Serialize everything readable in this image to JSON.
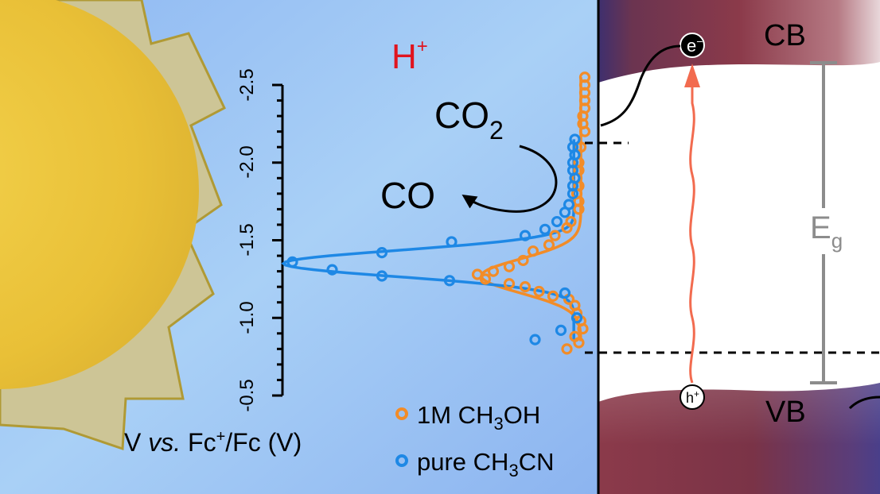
{
  "left_panel": {
    "proton_label": "H",
    "proton_charge": "+",
    "reactant": "CO",
    "reactant_sub": "2",
    "product": "CO",
    "axis": {
      "ticks": [
        "-2.5",
        "-2.0",
        "-1.5",
        "-1.0",
        "-0.5"
      ],
      "label_v": "V ",
      "label_vs": "vs.",
      "label_fc": " Fc",
      "label_sup": "+",
      "label_rest": "/Fc (V)"
    },
    "legend": [
      {
        "prefix": "1M CH",
        "sub": "3",
        "suffix": "OH",
        "color": "#F28C28"
      },
      {
        "prefix": "pure CH",
        "sub": "3",
        "suffix": "CN",
        "color": "#1E88E5"
      }
    ]
  },
  "right_panel": {
    "cb_label": "CB",
    "vb_label": "VB",
    "gap_label": "E",
    "gap_sub": "g",
    "electron": "e",
    "electron_charge": "−",
    "hole": "h",
    "hole_charge": "+"
  },
  "colors": {
    "background_blue": "#A6CCF5",
    "sun_yellow": "#EBC234",
    "sun_rays": "#CDC596",
    "orange_series": "#F28C28",
    "blue_series": "#1E88E5",
    "band_red": "#8B3A4A",
    "excitation_arrow": "#F26B4F",
    "gap_gray": "#8C8C8C",
    "proton_red": "#E0141E"
  },
  "chart_data": {
    "type": "scatter",
    "orientation": "potential on vertical axis, signal on horizontal axis",
    "ylabel": "V vs. Fc+/Fc (V)",
    "ylim": [
      -2.5,
      -0.5
    ],
    "y_ticks": [
      -2.5,
      -2.0,
      -1.5,
      -1.0,
      -0.5
    ],
    "series": [
      {
        "name": "1M CH3OH",
        "color": "#F28C28",
        "peak_potential": -1.27,
        "points": [
          {
            "v": -2.55,
            "s": -0.02
          },
          {
            "v": -2.5,
            "s": -0.02
          },
          {
            "v": -2.45,
            "s": -0.02
          },
          {
            "v": -2.4,
            "s": -0.02
          },
          {
            "v": -2.35,
            "s": -0.02
          },
          {
            "v": -2.3,
            "s": -0.01
          },
          {
            "v": -2.25,
            "s": -0.01
          },
          {
            "v": -2.2,
            "s": -0.02
          },
          {
            "v": -2.1,
            "s": 0.0
          },
          {
            "v": -2.0,
            "s": 0.01
          },
          {
            "v": -1.95,
            "s": 0.01
          },
          {
            "v": -1.9,
            "s": 0.02
          },
          {
            "v": -1.85,
            "s": 0.01
          },
          {
            "v": -1.8,
            "s": 0.02
          },
          {
            "v": -1.75,
            "s": 0.01
          },
          {
            "v": -1.7,
            "s": 0.01
          },
          {
            "v": -1.62,
            "s": 0.05
          },
          {
            "v": -1.58,
            "s": 0.07
          },
          {
            "v": -1.53,
            "s": 0.13
          },
          {
            "v": -1.47,
            "s": 0.16
          },
          {
            "v": -1.43,
            "s": 0.24
          },
          {
            "v": -1.37,
            "s": 0.29
          },
          {
            "v": -1.33,
            "s": 0.36
          },
          {
            "v": -1.3,
            "s": 0.44
          },
          {
            "v": -1.28,
            "s": 0.52
          },
          {
            "v": -1.25,
            "s": 0.48
          },
          {
            "v": -1.22,
            "s": 0.36
          },
          {
            "v": -1.2,
            "s": 0.28
          },
          {
            "v": -1.17,
            "s": 0.21
          },
          {
            "v": -1.14,
            "s": 0.14
          },
          {
            "v": -1.12,
            "s": 0.06
          },
          {
            "v": -1.08,
            "s": 0.03
          },
          {
            "v": -1.03,
            "s": 0.02
          },
          {
            "v": -0.98,
            "s": 0.0
          },
          {
            "v": -0.93,
            "s": -0.01
          },
          {
            "v": -0.88,
            "s": 0.03
          },
          {
            "v": -0.84,
            "s": 0.01
          },
          {
            "v": -0.8,
            "s": 0.07
          }
        ]
      },
      {
        "name": "pure CH3CN",
        "color": "#1E88E5",
        "peak_potential": -1.35,
        "points": [
          {
            "v": -2.15,
            "s": 0.03
          },
          {
            "v": -2.1,
            "s": 0.04
          },
          {
            "v": -2.05,
            "s": 0.03
          },
          {
            "v": -2.0,
            "s": 0.04
          },
          {
            "v": -1.95,
            "s": 0.04
          },
          {
            "v": -1.9,
            "s": 0.03
          },
          {
            "v": -1.85,
            "s": 0.04
          },
          {
            "v": -1.8,
            "s": 0.04
          },
          {
            "v": -1.73,
            "s": 0.06
          },
          {
            "v": -1.68,
            "s": 0.08
          },
          {
            "v": -1.62,
            "s": 0.12
          },
          {
            "v": -1.57,
            "s": 0.18
          },
          {
            "v": -1.53,
            "s": 0.28
          },
          {
            "v": -1.49,
            "s": 0.65
          },
          {
            "v": -1.42,
            "s": 1.0
          },
          {
            "v": -1.36,
            "s": 1.45
          },
          {
            "v": -1.31,
            "s": 1.25
          },
          {
            "v": -1.27,
            "s": 1.0
          },
          {
            "v": -1.24,
            "s": 0.66
          },
          {
            "v": -1.16,
            "s": 0.08
          },
          {
            "v": -0.92,
            "s": 0.1
          },
          {
            "v": -0.86,
            "s": 0.23
          },
          {
            "v": -1.0,
            "s": 0.02
          }
        ]
      }
    ]
  }
}
